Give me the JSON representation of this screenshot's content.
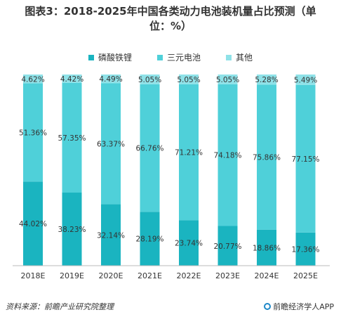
{
  "chart_data": {
    "type": "bar",
    "stacked": true,
    "title": "图表3：2018-2025年中国各类动力电池装机量占比预测（单\n位：%）",
    "categories": [
      "2018E",
      "2019E",
      "2020E",
      "2021E",
      "2022E",
      "2023E",
      "2024E",
      "2025E"
    ],
    "series": [
      {
        "name": "磷酸铁锂",
        "color": "#1ab4c0",
        "values": [
          44.02,
          38.23,
          32.14,
          28.19,
          23.74,
          20.77,
          18.86,
          17.36
        ]
      },
      {
        "name": "三元电池",
        "color": "#4fd0d9",
        "values": [
          51.36,
          57.35,
          63.37,
          66.76,
          71.21,
          74.18,
          75.86,
          77.15
        ]
      },
      {
        "name": "其他",
        "color": "#8fe2e8",
        "values": [
          4.62,
          4.42,
          4.49,
          5.05,
          5.05,
          5.05,
          5.28,
          5.49
        ]
      }
    ],
    "ylim": [
      0,
      100
    ],
    "grid": false,
    "legend_position": "top-center"
  },
  "footer": {
    "source": "资料来源：前瞻产业研究院整理",
    "brand": "前瞻经济学人APP"
  }
}
